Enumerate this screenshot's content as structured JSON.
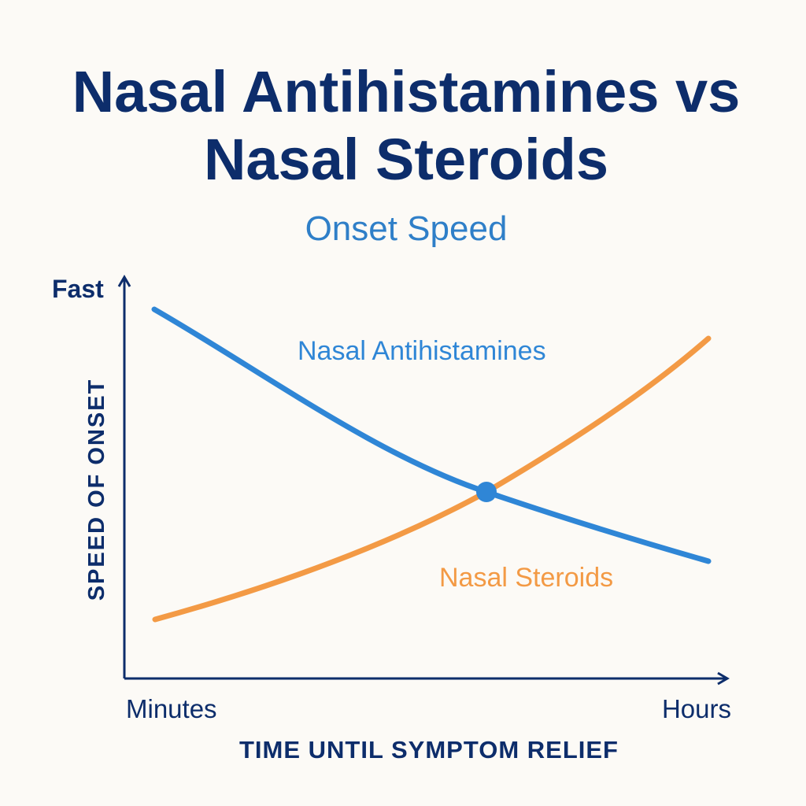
{
  "chart_data": {
    "type": "line",
    "title": [
      "Nasal Antihistamines vs",
      "Nasal Steroids"
    ],
    "subtitle": "Onset Speed",
    "y_label": "SPEED OF ONSET",
    "y_end_label": "Fast",
    "x_label": "TIME UNTIL SYMPTOM RELIEF",
    "x_start_label": "Minutes",
    "x_end_label": "Hours",
    "series": [
      {
        "name": "Nasal Antihistamines",
        "color": "#2f86d6"
      },
      {
        "name": "Nasal Steroids",
        "color": "#f39a45"
      }
    ]
  }
}
